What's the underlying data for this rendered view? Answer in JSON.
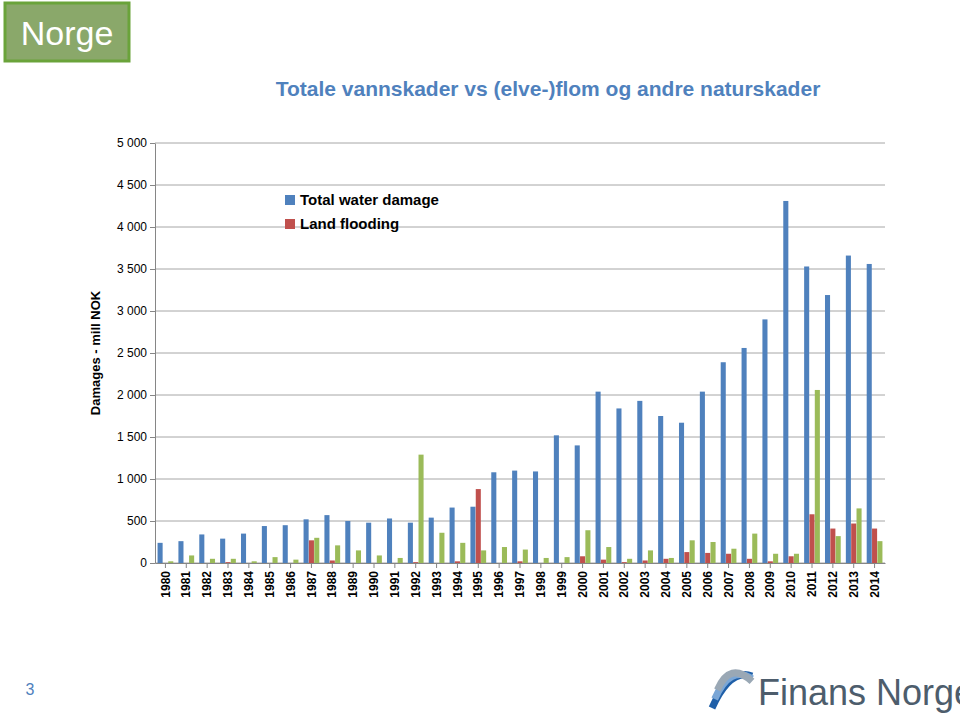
{
  "page": {
    "header": "Norge",
    "page_number": "3",
    "logo": "Finans Norge"
  },
  "chart_data": {
    "type": "bar",
    "title": "Totale vannskader vs (elve-)flom og andre naturskader",
    "y_label": "Damages - mill NOK",
    "categories": [
      "1980",
      "1981",
      "1982",
      "1983",
      "1984",
      "1985",
      "1986",
      "1987",
      "1988",
      "1989",
      "1990",
      "1991",
      "1992",
      "1993",
      "1994",
      "1995",
      "1996",
      "1997",
      "1998",
      "1999",
      "2000",
      "2001",
      "2002",
      "2003",
      "2004",
      "2005",
      "2006",
      "2007",
      "2008",
      "2009",
      "2010",
      "2011",
      "2012",
      "2013",
      "2014"
    ],
    "series": [
      {
        "name": "Total water damage",
        "color": "#4f81bd",
        "values": [
          240,
          260,
          340,
          290,
          350,
          440,
          450,
          520,
          570,
          500,
          480,
          530,
          480,
          540,
          660,
          670,
          1080,
          1100,
          1090,
          1520,
          1400,
          2040,
          1840,
          1930,
          1750,
          1670,
          2040,
          2390,
          2560,
          2900,
          4310,
          3530,
          3190,
          3660,
          3560
        ]
      },
      {
        "name": "Land flooding",
        "color": "#c0504d",
        "values": [
          0,
          0,
          0,
          10,
          0,
          0,
          0,
          270,
          30,
          0,
          0,
          0,
          10,
          0,
          20,
          880,
          0,
          20,
          0,
          0,
          80,
          40,
          10,
          30,
          50,
          130,
          120,
          110,
          50,
          20,
          80,
          580,
          410,
          470,
          410
        ]
      },
      {
        "color": "#9bbb59",
        "values": [
          20,
          90,
          50,
          50,
          20,
          70,
          40,
          300,
          210,
          150,
          90,
          60,
          1290,
          360,
          240,
          150,
          190,
          160,
          60,
          70,
          390,
          190,
          50,
          150,
          60,
          270,
          250,
          170,
          350,
          110,
          110,
          2060,
          320,
          650,
          260
        ]
      }
    ],
    "ylim": [
      0,
      5000
    ],
    "yticks": [
      0,
      500,
      {
        "value": 1000,
        "label": "1 000"
      },
      {
        "value": 1500,
        "label": "1 500"
      },
      {
        "value": 2000,
        "label": "2 000"
      },
      {
        "value": 2500,
        "label": "2 500"
      },
      {
        "value": 3000,
        "label": "3 000"
      },
      {
        "value": 3500,
        "label": "3 500"
      },
      {
        "value": 4000,
        "label": "4 000"
      },
      {
        "value": 4500,
        "label": "4 500"
      },
      {
        "value": 5000,
        "label": "5 000"
      }
    ],
    "grid": true,
    "legend": "top-left"
  }
}
